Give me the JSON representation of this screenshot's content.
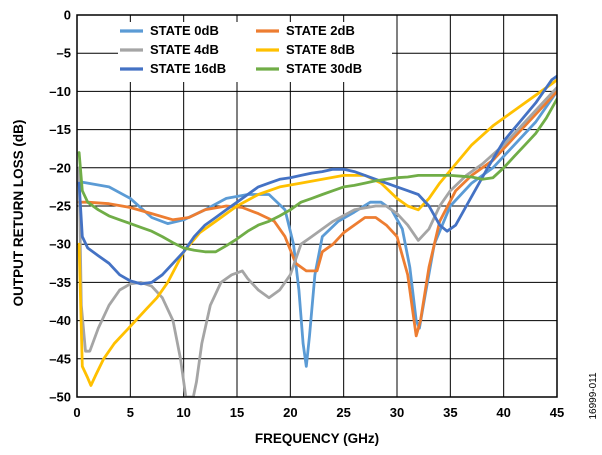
{
  "figure_id": "16999-011",
  "chart_data": {
    "type": "line",
    "xlabel": "FREQUENCY (GHz)",
    "ylabel": "OUTPUT RETURN LOSS (dB)",
    "xlim": [
      0,
      45
    ],
    "ylim": [
      -50,
      0
    ],
    "xticks": [
      "0",
      "5",
      "10",
      "15",
      "20",
      "25",
      "30",
      "35",
      "40",
      "45"
    ],
    "yticks": [
      "0",
      "–5",
      "–10",
      "–15",
      "–20",
      "–25",
      "–30",
      "–35",
      "–40",
      "–45",
      "–50"
    ],
    "grid": true,
    "legend_position": "top",
    "series": [
      {
        "name": "STATE 0dB",
        "color": "#5b9bd5",
        "points": [
          [
            0.2,
            -21.8
          ],
          [
            1,
            -22
          ],
          [
            3,
            -22.5
          ],
          [
            5,
            -24
          ],
          [
            7,
            -26.5
          ],
          [
            8.5,
            -27.3
          ],
          [
            10,
            -26.8
          ],
          [
            12,
            -25.5
          ],
          [
            14,
            -24
          ],
          [
            16,
            -23.5
          ],
          [
            18,
            -23.5
          ],
          [
            19.5,
            -25.5
          ],
          [
            20.3,
            -30
          ],
          [
            20.8,
            -36
          ],
          [
            21.2,
            -43
          ],
          [
            21.5,
            -46
          ],
          [
            21.8,
            -42
          ],
          [
            22.3,
            -34
          ],
          [
            23,
            -29
          ],
          [
            24.5,
            -27
          ],
          [
            26,
            -25.8
          ],
          [
            27.5,
            -24.5
          ],
          [
            28.5,
            -24.5
          ],
          [
            29.5,
            -25.5
          ],
          [
            30.5,
            -28
          ],
          [
            31.2,
            -33
          ],
          [
            31.8,
            -40
          ],
          [
            32.1,
            -41
          ],
          [
            32.6,
            -37
          ],
          [
            33.5,
            -30
          ],
          [
            35,
            -25
          ],
          [
            37,
            -22
          ],
          [
            39,
            -20
          ],
          [
            41,
            -17
          ],
          [
            43,
            -14
          ],
          [
            45,
            -10
          ]
        ]
      },
      {
        "name": "STATE 2dB",
        "color": "#ed7d31",
        "points": [
          [
            0.2,
            -24.5
          ],
          [
            1,
            -24.5
          ],
          [
            3,
            -24.7
          ],
          [
            5,
            -25.2
          ],
          [
            7,
            -26
          ],
          [
            9,
            -26.8
          ],
          [
            10.5,
            -26.5
          ],
          [
            12,
            -25.5
          ],
          [
            14,
            -25
          ],
          [
            15.5,
            -25.2
          ],
          [
            17,
            -26
          ],
          [
            18.5,
            -27
          ],
          [
            19.5,
            -29
          ],
          [
            20.5,
            -32.5
          ],
          [
            21.5,
            -33.5
          ],
          [
            22.5,
            -33.5
          ],
          [
            23,
            -31
          ],
          [
            24,
            -30
          ],
          [
            25,
            -28.5
          ],
          [
            26,
            -27.5
          ],
          [
            27,
            -26.5
          ],
          [
            28,
            -26.5
          ],
          [
            29,
            -27.5
          ],
          [
            30,
            -29
          ],
          [
            31,
            -34
          ],
          [
            31.5,
            -39
          ],
          [
            31.8,
            -42
          ],
          [
            32.2,
            -40
          ],
          [
            33,
            -33
          ],
          [
            34,
            -27
          ],
          [
            35.5,
            -23
          ],
          [
            37,
            -21
          ],
          [
            39,
            -19
          ],
          [
            41,
            -16
          ],
          [
            43,
            -13
          ],
          [
            45,
            -10
          ]
        ]
      },
      {
        "name": "STATE 4dB",
        "color": "#a5a5a5",
        "points": [
          [
            0.2,
            -20
          ],
          [
            0.4,
            -38
          ],
          [
            0.8,
            -44
          ],
          [
            1.2,
            -44
          ],
          [
            2,
            -41
          ],
          [
            3,
            -38
          ],
          [
            4,
            -36
          ],
          [
            5,
            -35.2
          ],
          [
            6,
            -35
          ],
          [
            7,
            -35.5
          ],
          [
            8,
            -37
          ],
          [
            9,
            -40
          ],
          [
            9.7,
            -45
          ],
          [
            10,
            -48
          ],
          [
            10.2,
            -50
          ],
          [
            10.9,
            -50
          ],
          [
            11.2,
            -48
          ],
          [
            11.7,
            -43
          ],
          [
            12.5,
            -38
          ],
          [
            13.5,
            -35
          ],
          [
            14.5,
            -34
          ],
          [
            15.5,
            -33.5
          ],
          [
            16,
            -34.5
          ],
          [
            17,
            -36
          ],
          [
            18,
            -37
          ],
          [
            19,
            -36
          ],
          [
            20,
            -34
          ],
          [
            21,
            -30
          ],
          [
            22,
            -29
          ],
          [
            24,
            -27
          ],
          [
            26,
            -25.5
          ],
          [
            28,
            -25
          ],
          [
            29,
            -25
          ],
          [
            30,
            -26
          ],
          [
            31,
            -27.5
          ],
          [
            32,
            -29.5
          ],
          [
            33,
            -28
          ],
          [
            34,
            -25
          ],
          [
            35,
            -23
          ],
          [
            36.5,
            -21
          ],
          [
            38,
            -19.5
          ],
          [
            40,
            -17
          ],
          [
            42,
            -14
          ],
          [
            44,
            -11
          ],
          [
            45,
            -9.5
          ]
        ]
      },
      {
        "name": "STATE 8dB",
        "color": "#ffc000",
        "points": [
          [
            0.2,
            -30
          ],
          [
            0.5,
            -46
          ],
          [
            1,
            -47.5
          ],
          [
            1.3,
            -48.5
          ],
          [
            1.8,
            -47
          ],
          [
            2.5,
            -45
          ],
          [
            3.5,
            -43
          ],
          [
            4.5,
            -41.5
          ],
          [
            5.5,
            -40
          ],
          [
            6.5,
            -38.5
          ],
          [
            7.5,
            -37
          ],
          [
            8.5,
            -35
          ],
          [
            10,
            -31
          ],
          [
            11.5,
            -28.5
          ],
          [
            13,
            -27
          ],
          [
            15,
            -25
          ],
          [
            17,
            -23.5
          ],
          [
            19,
            -22.5
          ],
          [
            21,
            -22
          ],
          [
            23,
            -21.5
          ],
          [
            25,
            -21
          ],
          [
            27,
            -21
          ],
          [
            28.5,
            -22
          ],
          [
            30,
            -24
          ],
          [
            31,
            -25
          ],
          [
            32,
            -25.5
          ],
          [
            33,
            -24
          ],
          [
            34,
            -22
          ],
          [
            35.5,
            -19.5
          ],
          [
            37,
            -17
          ],
          [
            39,
            -14.5
          ],
          [
            41,
            -12.5
          ],
          [
            43,
            -10.5
          ],
          [
            44.5,
            -9
          ],
          [
            45,
            -8.5
          ]
        ]
      },
      {
        "name": "STATE 16dB",
        "color": "#4472c4",
        "points": [
          [
            0.2,
            -22
          ],
          [
            0.5,
            -29
          ],
          [
            1,
            -30.5
          ],
          [
            2,
            -31.5
          ],
          [
            3,
            -32.5
          ],
          [
            4,
            -34
          ],
          [
            5,
            -34.8
          ],
          [
            6,
            -35.2
          ],
          [
            7,
            -35
          ],
          [
            8,
            -34
          ],
          [
            9,
            -32.5
          ],
          [
            10,
            -31
          ],
          [
            11,
            -29
          ],
          [
            12,
            -27.5
          ],
          [
            13,
            -26.5
          ],
          [
            14,
            -25.5
          ],
          [
            15,
            -24.5
          ],
          [
            16,
            -23.5
          ],
          [
            17,
            -22.5
          ],
          [
            18,
            -22
          ],
          [
            19,
            -21.5
          ],
          [
            20,
            -21.3
          ],
          [
            21,
            -21
          ],
          [
            22,
            -20.7
          ],
          [
            23,
            -20.5
          ],
          [
            24,
            -20.2
          ],
          [
            25,
            -20.2
          ],
          [
            26,
            -20.5
          ],
          [
            27,
            -21
          ],
          [
            28,
            -21.5
          ],
          [
            29,
            -22
          ],
          [
            30,
            -22.5
          ],
          [
            31,
            -23
          ],
          [
            32,
            -23.5
          ],
          [
            33,
            -25
          ],
          [
            34,
            -27.5
          ],
          [
            34.7,
            -28.3
          ],
          [
            35.5,
            -27.5
          ],
          [
            36.5,
            -25
          ],
          [
            37.5,
            -22.5
          ],
          [
            38.5,
            -20
          ],
          [
            40,
            -16.5
          ],
          [
            41.5,
            -14
          ],
          [
            43,
            -11.5
          ],
          [
            44.5,
            -8.5
          ],
          [
            45,
            -8
          ]
        ]
      },
      {
        "name": "STATE 30dB",
        "color": "#70ad47",
        "points": [
          [
            0.2,
            -18
          ],
          [
            0.5,
            -23
          ],
          [
            1,
            -24.5
          ],
          [
            2,
            -25.5
          ],
          [
            3,
            -26.3
          ],
          [
            4,
            -26.8
          ],
          [
            5,
            -27.3
          ],
          [
            6,
            -27.8
          ],
          [
            7,
            -28.3
          ],
          [
            8,
            -29
          ],
          [
            9,
            -29.8
          ],
          [
            10,
            -30.5
          ],
          [
            11,
            -30.8
          ],
          [
            12,
            -31
          ],
          [
            13,
            -31
          ],
          [
            14,
            -30.2
          ],
          [
            15,
            -29.3
          ],
          [
            16,
            -28.3
          ],
          [
            17,
            -27.5
          ],
          [
            18,
            -27
          ],
          [
            19,
            -26.3
          ],
          [
            20,
            -25.5
          ],
          [
            21,
            -24.5
          ],
          [
            22,
            -24
          ],
          [
            23,
            -23.5
          ],
          [
            24,
            -23
          ],
          [
            25,
            -22.5
          ],
          [
            26,
            -22.3
          ],
          [
            27,
            -22
          ],
          [
            28,
            -21.7
          ],
          [
            29,
            -21.5
          ],
          [
            30,
            -21.3
          ],
          [
            31,
            -21.2
          ],
          [
            32,
            -21
          ],
          [
            33,
            -21
          ],
          [
            34,
            -21
          ],
          [
            35,
            -21
          ],
          [
            36,
            -21.1
          ],
          [
            37,
            -21.2
          ],
          [
            38,
            -21.5
          ],
          [
            39,
            -21.3
          ],
          [
            40,
            -20
          ],
          [
            41,
            -18.5
          ],
          [
            42,
            -17
          ],
          [
            43,
            -15.5
          ],
          [
            44,
            -13.5
          ],
          [
            45,
            -11
          ]
        ]
      }
    ]
  }
}
